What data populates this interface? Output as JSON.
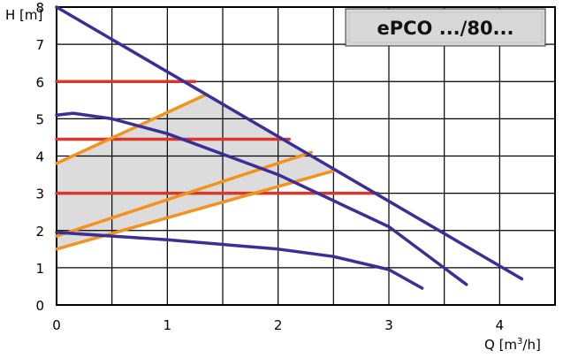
{
  "chart_data": {
    "type": "line",
    "title": "ePCO .../80...",
    "xlabel_main": "Q [m",
    "xlabel_sup": "3",
    "xlabel_tail": "/h]",
    "ylabel": "H [m]",
    "xlim": [
      0,
      4.5
    ],
    "ylim": [
      0,
      8
    ],
    "x_ticks": [
      "0",
      "1",
      "2",
      "3",
      "4"
    ],
    "y_ticks": [
      "0",
      "1",
      "2",
      "3",
      "4",
      "5",
      "6",
      "7",
      "8"
    ],
    "grid": true,
    "colors": {
      "pump_curves": "#3b2e96",
      "constant_pressure": "#d8372a",
      "proportional_pressure": "#f1931e",
      "operating_area": "#dcdcdc"
    },
    "operating_area": [
      [
        0,
        1.9
      ],
      [
        0,
        3.8
      ],
      [
        1.35,
        5.65
      ],
      [
        2.5,
        3.6
      ],
      [
        0,
        1.5
      ]
    ],
    "pump_curves": [
      {
        "points": [
          [
            0,
            8.0
          ],
          [
            4.2,
            0.7
          ]
        ]
      },
      {
        "points": [
          [
            0,
            5.1
          ],
          [
            0.15,
            5.15
          ],
          [
            0.5,
            5.0
          ],
          [
            1.0,
            4.6
          ],
          [
            2.0,
            3.5
          ],
          [
            3.0,
            2.1
          ],
          [
            3.7,
            0.55
          ]
        ]
      },
      {
        "points": [
          [
            0,
            1.95
          ],
          [
            1.0,
            1.75
          ],
          [
            2.0,
            1.5
          ],
          [
            2.5,
            1.3
          ],
          [
            3.0,
            0.95
          ],
          [
            3.3,
            0.45
          ]
        ]
      }
    ],
    "constant_pressure_lines": [
      {
        "points": [
          [
            0,
            6.0
          ],
          [
            1.25,
            6.0
          ]
        ]
      },
      {
        "points": [
          [
            0,
            4.45
          ],
          [
            2.1,
            4.45
          ]
        ]
      },
      {
        "points": [
          [
            0,
            3.0
          ],
          [
            2.9,
            3.0
          ]
        ]
      }
    ],
    "proportional_pressure_lines": [
      {
        "points": [
          [
            0,
            3.8
          ],
          [
            1.35,
            5.65
          ]
        ]
      },
      {
        "points": [
          [
            0,
            1.85
          ],
          [
            2.3,
            4.1
          ]
        ]
      },
      {
        "points": [
          [
            0,
            1.5
          ],
          [
            2.5,
            3.6
          ]
        ]
      }
    ]
  }
}
